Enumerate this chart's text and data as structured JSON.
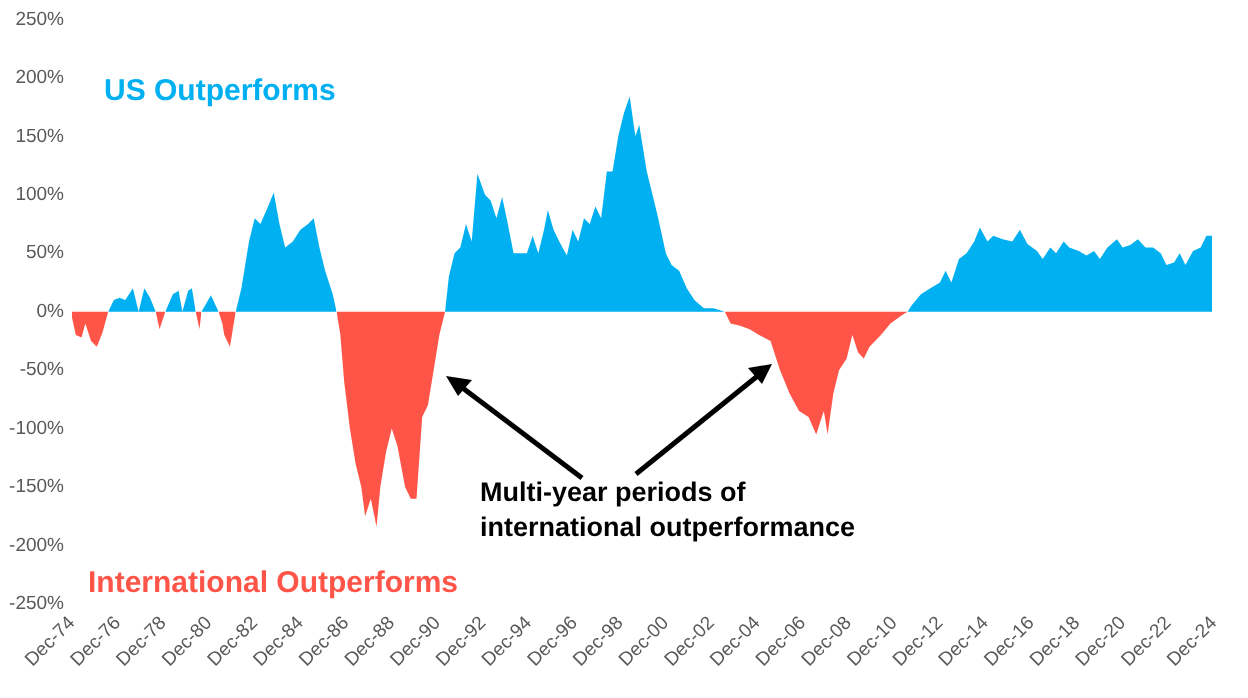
{
  "chart_data": {
    "type": "area",
    "annotations": [
      "US Outperforms",
      "International Outperforms",
      "Multi-year periods of\ninternational outperformance"
    ],
    "xlim": [
      "1974-12",
      "2024-12"
    ],
    "xticks": [
      {
        "value": "1974-12",
        "label": "Dec-74"
      },
      {
        "value": "1976-12",
        "label": "Dec-76"
      },
      {
        "value": "1978-12",
        "label": "Dec-78"
      },
      {
        "value": "1980-12",
        "label": "Dec-80"
      },
      {
        "value": "1982-12",
        "label": "Dec-82"
      },
      {
        "value": "1984-12",
        "label": "Dec-84"
      },
      {
        "value": "1986-12",
        "label": "Dec-86"
      },
      {
        "value": "1988-12",
        "label": "Dec-88"
      },
      {
        "value": "1990-12",
        "label": "Dec-90"
      },
      {
        "value": "1992-12",
        "label": "Dec-92"
      },
      {
        "value": "1994-12",
        "label": "Dec-94"
      },
      {
        "value": "1996-12",
        "label": "Dec-96"
      },
      {
        "value": "1998-12",
        "label": "Dec-98"
      },
      {
        "value": "2000-12",
        "label": "Dec-00"
      },
      {
        "value": "2002-12",
        "label": "Dec-02"
      },
      {
        "value": "2004-12",
        "label": "Dec-04"
      },
      {
        "value": "2006-12",
        "label": "Dec-06"
      },
      {
        "value": "2008-12",
        "label": "Dec-08"
      },
      {
        "value": "2010-12",
        "label": "Dec-10"
      },
      {
        "value": "2012-12",
        "label": "Dec-12"
      },
      {
        "value": "2014-12",
        "label": "Dec-14"
      },
      {
        "value": "2016-12",
        "label": "Dec-16"
      },
      {
        "value": "2018-12",
        "label": "Dec-18"
      },
      {
        "value": "2020-12",
        "label": "Dec-20"
      },
      {
        "value": "2022-12",
        "label": "Dec-22"
      },
      {
        "value": "2024-12",
        "label": "Dec-24"
      }
    ],
    "ylim": [
      -250,
      250
    ],
    "yticks": [
      {
        "value": -250,
        "label": "-250%"
      },
      {
        "value": -200,
        "label": "-200%"
      },
      {
        "value": -150,
        "label": "-150%"
      },
      {
        "value": -100,
        "label": "-100%"
      },
      {
        "value": -50,
        "label": "-50%"
      },
      {
        "value": 0,
        "label": "0%"
      },
      {
        "value": 50,
        "label": "50%"
      },
      {
        "value": 100,
        "label": "100%"
      },
      {
        "value": 150,
        "label": "150%"
      },
      {
        "value": 200,
        "label": "200%"
      },
      {
        "value": 250,
        "label": "250%"
      }
    ],
    "series": [
      {
        "color": "#00b0f0",
        "x": [
          "1976-07",
          "1976-10",
          "1977-01",
          "1977-04",
          "1977-08",
          "1977-11",
          "1978-02",
          "1978-05",
          "1978-08",
          "1978-10",
          "1979-01",
          "1979-05",
          "1979-08",
          "1979-10",
          "1980-01",
          "1980-03",
          "1980-05",
          "1980-07",
          "1980-08",
          "1981-01",
          "1981-05",
          "1981-07",
          "1982-02",
          "1982-05",
          "1982-09",
          "1982-12",
          "1983-03",
          "1983-07",
          "1983-10",
          "1984-01",
          "1984-04",
          "1984-08",
          "1984-12",
          "1985-04",
          "1985-07",
          "1985-10",
          "1986-01",
          "1986-05",
          "1986-07",
          "1988-07",
          "1991-04",
          "1991-06",
          "1991-09",
          "1991-12",
          "1992-03",
          "1992-06",
          "1992-09",
          "1993-01",
          "1993-04",
          "1993-07",
          "1993-10",
          "1994-01",
          "1994-04",
          "1994-07",
          "1994-11",
          "1995-02",
          "1995-05",
          "1995-08",
          "1995-10",
          "1996-01",
          "1996-04",
          "1996-08",
          "1996-11",
          "1997-02",
          "1997-05",
          "1997-08",
          "1997-11",
          "1998-02",
          "1998-05",
          "1998-08",
          "1998-11",
          "1999-02",
          "1999-05",
          "1999-08",
          "1999-10",
          "2000-02",
          "2000-05",
          "2000-08",
          "2000-12",
          "2001-03",
          "2001-07",
          "2001-11",
          "2002-03",
          "2002-08",
          "2003-01",
          "2003-07",
          "2007-07",
          "2011-07",
          "2011-09",
          "2012-02",
          "2012-07",
          "2012-12",
          "2013-03",
          "2013-06",
          "2013-10",
          "2014-02",
          "2014-06",
          "2014-09",
          "2015-01",
          "2015-04",
          "2015-09",
          "2016-02",
          "2016-06",
          "2016-10",
          "2017-03",
          "2017-06",
          "2017-10",
          "2018-01",
          "2018-05",
          "2018-08",
          "2019-01",
          "2019-05",
          "2019-09",
          "2019-12",
          "2020-04",
          "2020-09",
          "2020-12",
          "2021-04",
          "2021-08",
          "2021-12",
          "2022-04",
          "2022-08",
          "2022-11",
          "2023-03",
          "2023-06",
          "2023-09",
          "2024-01",
          "2024-05",
          "2024-08",
          "2024-11"
        ],
        "values": [
          0,
          10,
          12,
          10,
          20,
          0,
          20,
          12,
          0,
          null,
          0,
          15,
          18,
          0,
          18,
          20,
          0,
          null,
          0,
          14,
          0,
          null,
          0,
          20,
          60,
          80,
          75,
          90,
          102,
          75,
          55,
          60,
          70,
          75,
          80,
          55,
          35,
          15,
          0,
          null,
          0,
          30,
          50,
          55,
          75,
          60,
          118,
          100,
          95,
          80,
          98,
          75,
          50,
          50,
          50,
          65,
          50,
          70,
          87,
          70,
          60,
          48,
          70,
          60,
          80,
          75,
          90,
          80,
          120,
          120,
          150,
          170,
          184,
          150,
          160,
          120,
          100,
          80,
          50,
          40,
          35,
          20,
          10,
          3,
          3,
          0,
          null,
          0,
          5,
          15,
          20,
          25,
          35,
          25,
          45,
          50,
          60,
          72,
          60,
          65,
          62,
          60,
          70,
          58,
          52,
          45,
          55,
          50,
          60,
          55,
          52,
          48,
          52,
          45,
          55,
          62,
          55,
          57,
          62,
          55,
          55,
          50,
          40,
          42,
          50,
          40,
          52,
          55,
          65,
          65
        ]
      },
      {
        "color": "#ff5548",
        "x": [
          "1974-12",
          "1975-02",
          "1975-05",
          "1975-07",
          "1975-10",
          "1976-01",
          "1976-04",
          "1976-07",
          "1977-07",
          "1978-08",
          "1978-10",
          "1979-01",
          "1979-07",
          "1980-05",
          "1980-07",
          "1980-08",
          "1981-01",
          "1981-05",
          "1981-07",
          "1981-08",
          "1981-11",
          "1982-02",
          "1984-01",
          "1986-07",
          "1986-09",
          "1986-11",
          "1987-02",
          "1987-05",
          "1987-08",
          "1987-10",
          "1988-01",
          "1988-04",
          "1988-06",
          "1988-09",
          "1988-12",
          "1989-03",
          "1989-07",
          "1989-10",
          "1990-01",
          "1990-04",
          "1990-07",
          "1990-10",
          "1991-01",
          "1991-04",
          "1997-01",
          "2003-07",
          "2003-10",
          "2004-03",
          "2004-08",
          "2005-01",
          "2005-07",
          "2005-12",
          "2006-05",
          "2006-10",
          "2007-03",
          "2007-07",
          "2007-11",
          "2008-01",
          "2008-04",
          "2008-07",
          "2008-11",
          "2009-02",
          "2009-05",
          "2009-08",
          "2009-11",
          "2010-05",
          "2010-10",
          "2011-04",
          "2011-07"
        ],
        "values": [
          -5,
          -20,
          -22,
          -10,
          -25,
          -30,
          -18,
          0,
          null,
          0,
          -15,
          0,
          null,
          0,
          -15,
          0,
          null,
          0,
          -10,
          -20,
          -30,
          0,
          null,
          0,
          -20,
          -60,
          -100,
          -130,
          -150,
          -175,
          -160,
          -184,
          -150,
          -120,
          -100,
          -115,
          -150,
          -160,
          -160,
          -90,
          -80,
          -50,
          -20,
          0,
          null,
          0,
          -10,
          -12,
          -15,
          -20,
          -25,
          -50,
          -70,
          -85,
          -90,
          -105,
          -85,
          -105,
          -70,
          -50,
          -40,
          -20,
          -35,
          -40,
          -30,
          -20,
          -10,
          -3,
          0
        ]
      }
    ]
  }
}
